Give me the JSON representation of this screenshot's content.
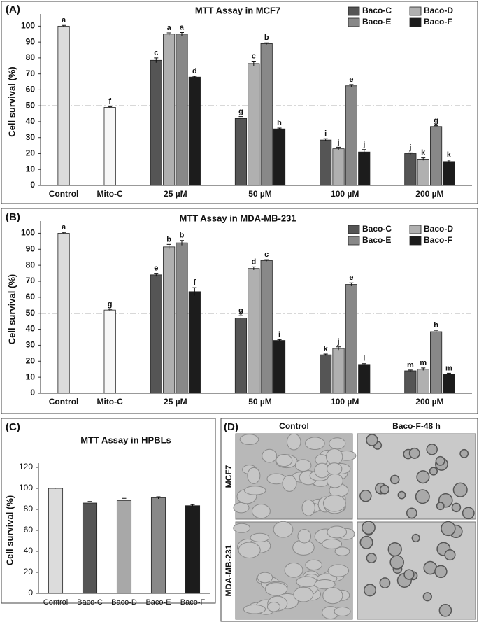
{
  "chart_data": [
    {
      "type": "bar",
      "panel_label": "(A)",
      "title": "MTT Assay in MCF7",
      "ylabel": "Cell survival (%)",
      "categories": [
        "Control",
        "Mito-C",
        "25 µM",
        "50 µM",
        "100 µM",
        "200 µM"
      ],
      "values": [
        100,
        49,
        null,
        null,
        null,
        null
      ],
      "errors": [
        0.5,
        0.5,
        null,
        null,
        null,
        null
      ],
      "labels": [
        "a",
        "f",
        null,
        null,
        null,
        null
      ],
      "colors": [
        "#dcdcdc",
        "#f7f7f7",
        null,
        null,
        null,
        null
      ],
      "series": [
        {
          "name": "Baco-C",
          "color": "#555555",
          "values": [
            null,
            null,
            78.5,
            42,
            28.5,
            20
          ],
          "errors": [
            null,
            null,
            1.5,
            1.2,
            0.8,
            0.5
          ],
          "labels": [
            null,
            null,
            "c",
            "g",
            "i",
            "j"
          ]
        },
        {
          "name": "Baco-D",
          "color": "#b0b0b0",
          "values": [
            null,
            null,
            95,
            76.5,
            23,
            16.5
          ],
          "errors": [
            null,
            null,
            0.8,
            1.5,
            1,
            0.8
          ],
          "labels": [
            null,
            null,
            "a",
            "c",
            "j",
            "k"
          ]
        },
        {
          "name": "Baco-E",
          "color": "#888888",
          "values": [
            null,
            null,
            95,
            89,
            62.5,
            37
          ],
          "errors": [
            null,
            null,
            1,
            0.5,
            0.8,
            0.5
          ],
          "labels": [
            null,
            null,
            "a",
            "b",
            "e",
            "g"
          ]
        },
        {
          "name": "Baco-F",
          "color": "#1c1c1c",
          "values": [
            null,
            null,
            68,
            35.5,
            21,
            15
          ],
          "errors": [
            null,
            null,
            0.5,
            0.5,
            1.5,
            1
          ],
          "labels": [
            null,
            null,
            "d",
            "h",
            "j",
            "k"
          ]
        }
      ],
      "ylim": [
        0,
        105
      ],
      "yticks": [
        0,
        10,
        20,
        30,
        40,
        50,
        60,
        70,
        80,
        90,
        100
      ],
      "reference_line": 50,
      "legend": "upper right"
    },
    {
      "type": "bar",
      "panel_label": "(B)",
      "title": "MTT Assay in MDA-MB-231",
      "ylabel": "Cell survival (%)",
      "categories": [
        "Control",
        "Mito-C",
        "25 µM",
        "50 µM",
        "100 µM",
        "200 µM"
      ],
      "values": [
        100,
        52,
        null,
        null,
        null,
        null
      ],
      "errors": [
        0.5,
        0.5,
        null,
        null,
        null,
        null
      ],
      "labels": [
        "a",
        "g",
        null,
        null,
        null,
        null
      ],
      "colors": [
        "#dcdcdc",
        "#f7f7f7",
        null,
        null,
        null,
        null
      ],
      "series": [
        {
          "name": "Baco-C",
          "color": "#555555",
          "values": [
            null,
            null,
            74,
            47,
            24,
            14
          ],
          "errors": [
            null,
            null,
            1,
            1.5,
            0.5,
            0.5
          ],
          "labels": [
            null,
            null,
            "e",
            "g",
            "k",
            "m"
          ]
        },
        {
          "name": "Baco-D",
          "color": "#b0b0b0",
          "values": [
            null,
            null,
            91.5,
            78,
            28,
            15
          ],
          "errors": [
            null,
            null,
            1.5,
            1,
            1,
            0.8
          ],
          "labels": [
            null,
            null,
            "b",
            "d",
            "j",
            "m"
          ]
        },
        {
          "name": "Baco-E",
          "color": "#888888",
          "values": [
            null,
            null,
            94,
            83,
            68,
            38.5
          ],
          "errors": [
            null,
            null,
            1.5,
            0.5,
            1,
            0.8
          ],
          "labels": [
            null,
            null,
            "b",
            "c",
            "e",
            "h"
          ]
        },
        {
          "name": "Baco-F",
          "color": "#1c1c1c",
          "values": [
            null,
            null,
            63.5,
            33,
            18,
            12
          ],
          "errors": [
            null,
            null,
            2.5,
            0.5,
            0.5,
            0.5
          ],
          "labels": [
            null,
            null,
            "f",
            "i",
            "l",
            "m"
          ]
        }
      ],
      "ylim": [
        0,
        105
      ],
      "yticks": [
        0,
        10,
        20,
        30,
        40,
        50,
        60,
        70,
        80,
        90,
        100
      ],
      "reference_line": 50,
      "legend": "upper right"
    },
    {
      "type": "bar",
      "panel_label": "(C)",
      "title": "MTT Assay in HPBLs",
      "ylabel": "Cell survival (%)",
      "categories": [
        "Control",
        "Baco-C",
        "Baco-D",
        "Baco-E",
        "Baco-F"
      ],
      "values": [
        100,
        86,
        88.5,
        91,
        83.5
      ],
      "errors": [
        0.3,
        1.5,
        2,
        1,
        1
      ],
      "colors": [
        "#dcdcdc",
        "#555555",
        "#a8a8a8",
        "#888888",
        "#1c1c1c"
      ],
      "ylim": [
        0,
        120
      ],
      "yticks": [
        0,
        20,
        40,
        60,
        80,
        100,
        120
      ]
    }
  ],
  "panel_d": {
    "panel_label": "(D)",
    "columns": [
      "Control",
      "Baco-F-48 h"
    ],
    "rows": [
      "MCF7",
      "MDA-MB-231"
    ]
  }
}
